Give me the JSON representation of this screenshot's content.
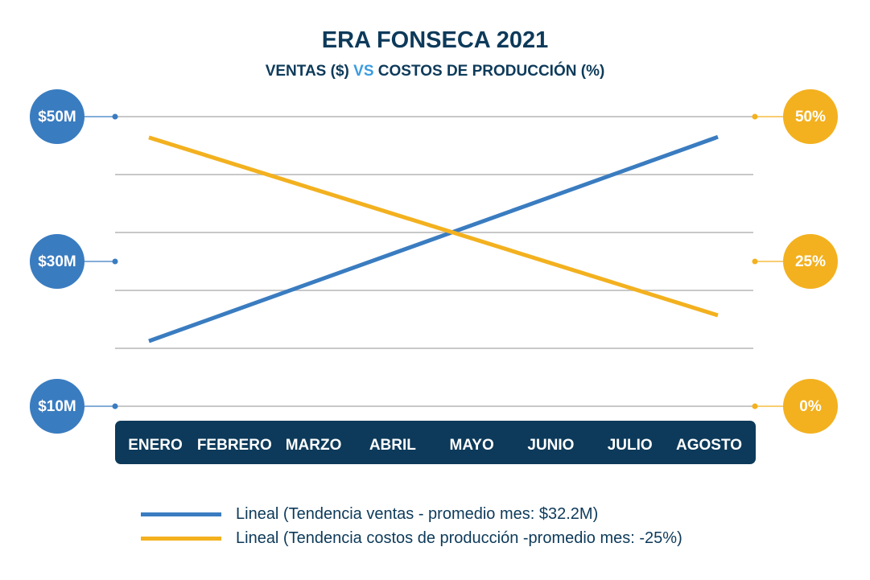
{
  "chart_data": {
    "type": "line",
    "title": "ERA FONSECA 2021",
    "subtitle": {
      "part1": "VENTAS ($)",
      "vs": "VS",
      "part2": "COSTOS DE PRODUCCIÓN (%)"
    },
    "categories": [
      "ENERO",
      "FEBRERO",
      "MARZO",
      "ABRIL",
      "MAYO",
      "JUNIO",
      "JULIO",
      "AGOSTO"
    ],
    "left_axis": {
      "ticks": [
        "$10M",
        "$30M",
        "$50M"
      ],
      "tick_values": [
        10,
        30,
        50
      ],
      "ylim": [
        10,
        50
      ],
      "color": "#3a7cc0"
    },
    "right_axis": {
      "ticks": [
        "0%",
        "25%",
        "50%"
      ],
      "tick_values": [
        0,
        25,
        50
      ],
      "ylim": [
        0,
        50
      ],
      "color": "#f3b11f"
    },
    "grid": true,
    "series": [
      {
        "name": "Lineal (Tendencia ventas - promedio mes: $32.2M)",
        "axis": "left",
        "color": "#3a7cc0",
        "start": 19,
        "end": 47.2
      },
      {
        "name": "Lineal (Tendencia costos de producción -promedio mes: -25%)",
        "axis": "right",
        "color": "#f3b11f",
        "start": 46.4,
        "end": 15.7
      }
    ],
    "legend_position": "bottom",
    "month_bar_color": "#0d3a5a"
  }
}
